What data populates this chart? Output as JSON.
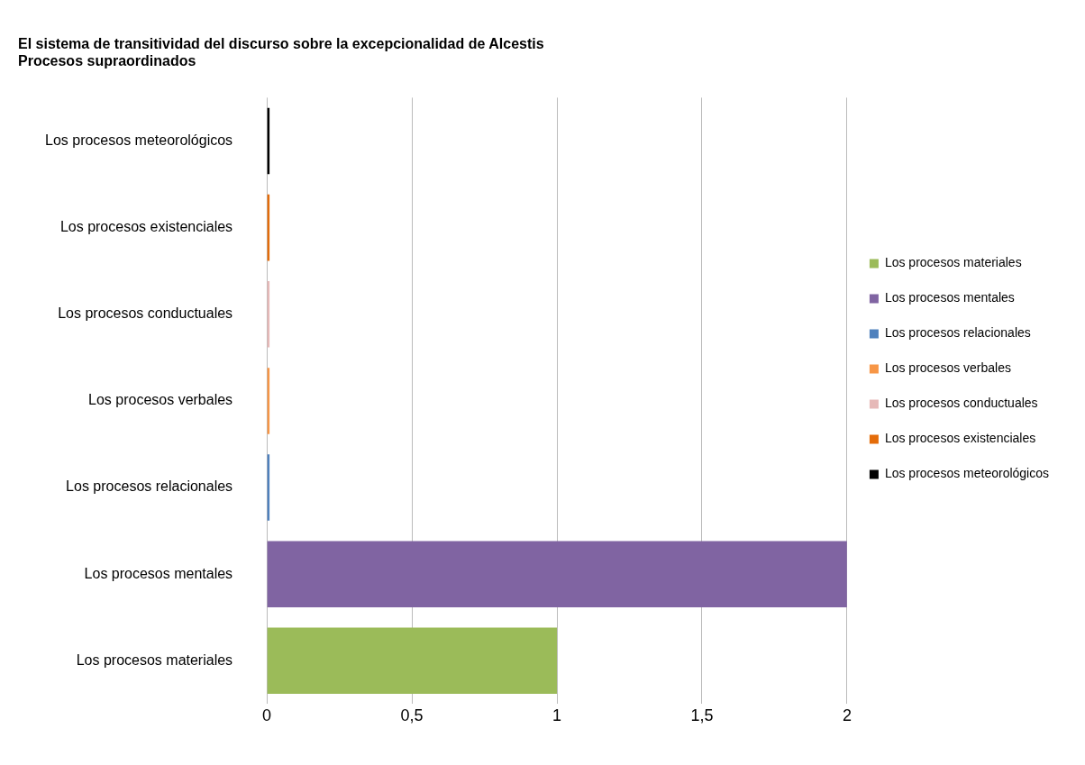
{
  "chart_data": {
    "type": "bar",
    "orientation": "horizontal",
    "title": "El sistema de transitividad del discurso sobre la excepcionalidad de Alcestis",
    "subtitle": "Procesos supraordinados",
    "categories": [
      "Los procesos meteorológicos",
      "Los procesos existenciales",
      "Los procesos conductuales",
      "Los procesos verbales",
      "Los procesos relacionales",
      "Los procesos mentales",
      "Los procesos materiales"
    ],
    "series": [
      {
        "name": "Los procesos meteorológicos",
        "color": "#000000",
        "values": [
          0,
          null,
          null,
          null,
          null,
          null,
          null
        ]
      },
      {
        "name": "Los procesos existenciales",
        "color": "#e46c0a",
        "values": [
          null,
          0,
          null,
          null,
          null,
          null,
          null
        ]
      },
      {
        "name": "Los procesos conductuales",
        "color": "#e6b9b8",
        "values": [
          null,
          null,
          0,
          null,
          null,
          null,
          null
        ]
      },
      {
        "name": "Los procesos verbales",
        "color": "#f79646",
        "values": [
          null,
          null,
          null,
          0,
          null,
          null,
          null
        ]
      },
      {
        "name": "Los procesos relacionales",
        "color": "#4f81bd",
        "values": [
          null,
          null,
          null,
          null,
          0,
          null,
          null
        ]
      },
      {
        "name": "Los procesos mentales",
        "color": "#8064a2",
        "values": [
          null,
          null,
          null,
          null,
          null,
          2,
          null
        ]
      },
      {
        "name": "Los procesos materiales",
        "color": "#9bbb59",
        "values": [
          null,
          null,
          null,
          null,
          null,
          null,
          1
        ]
      }
    ],
    "xlim": [
      0,
      2
    ],
    "xticks": [
      0,
      {
        "value": 0.5,
        "label": "0,5"
      },
      1,
      {
        "value": 1.5,
        "label": "1,5"
      },
      2
    ],
    "grid": "x",
    "legend": "right"
  }
}
